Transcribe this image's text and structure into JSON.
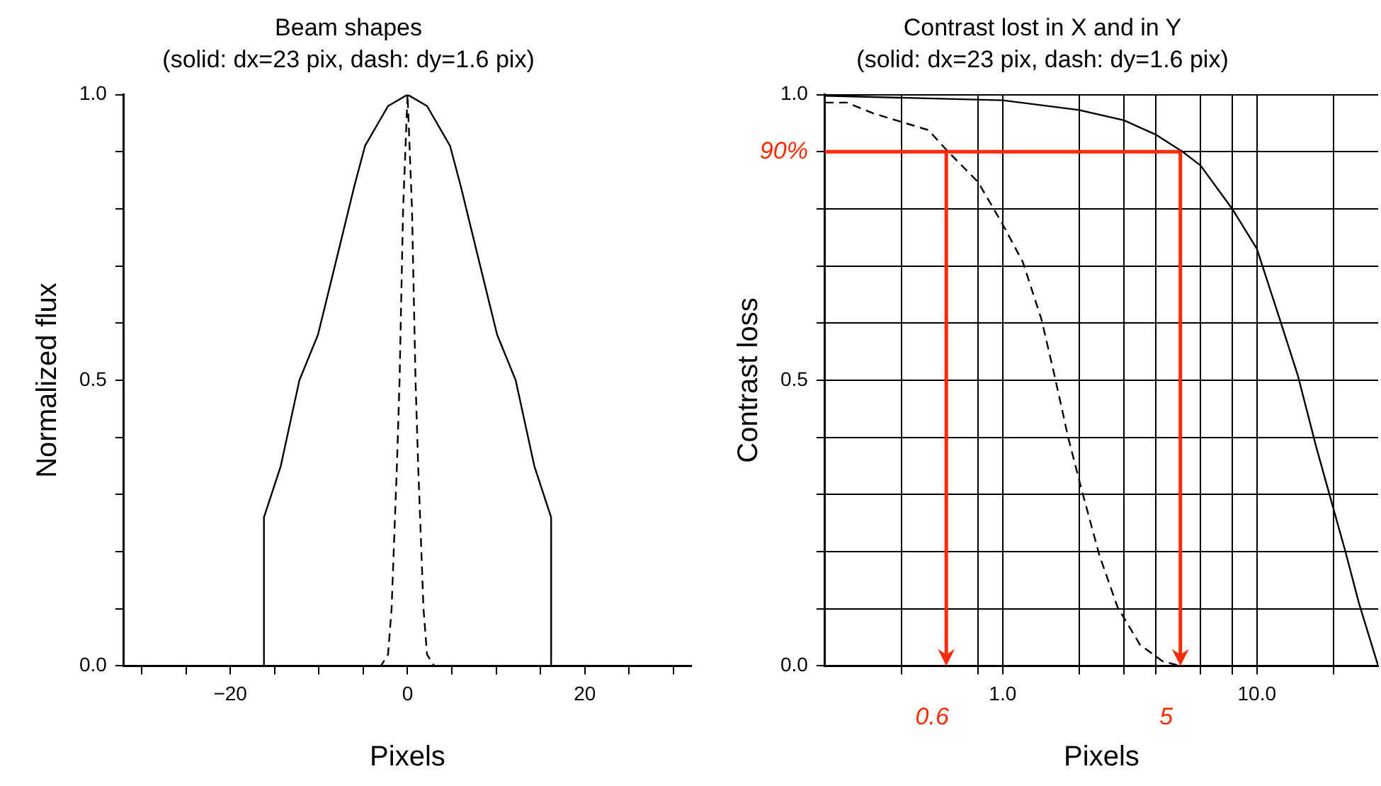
{
  "chart_data": [
    {
      "type": "line",
      "title": "Beam shapes",
      "subtitle": "(solid: dx=23 pix, dash: dy=1.6 pix)",
      "xlabel": "Pixels",
      "ylabel": "Normalized flux",
      "xlim": [
        -32,
        32
      ],
      "ylim": [
        0,
        1
      ],
      "xticks": [
        {
          "value": -30,
          "label": null
        },
        {
          "value": -25,
          "label": null
        },
        -20,
        {
          "value": -15,
          "label": null
        },
        {
          "value": -10,
          "label": null
        },
        {
          "value": -5,
          "label": null
        },
        0,
        {
          "value": 5,
          "label": null
        },
        {
          "value": 10,
          "label": null
        },
        {
          "value": 15,
          "label": null
        },
        20,
        {
          "value": 25,
          "label": null
        },
        {
          "value": 30,
          "label": null
        }
      ],
      "yticks": [
        {
          "value": 0,
          "label": "0.0"
        },
        {
          "value": 0.1,
          "label": null
        },
        {
          "value": 0.2,
          "label": null
        },
        {
          "value": 0.3,
          "label": null
        },
        {
          "value": 0.4,
          "label": null
        },
        {
          "value": 0.5,
          "label": "0.5"
        },
        {
          "value": 0.6,
          "label": null
        },
        {
          "value": 0.7,
          "label": null
        },
        {
          "value": 0.8,
          "label": null
        },
        {
          "value": 0.9,
          "label": null
        },
        {
          "value": 1,
          "label": "1.0"
        }
      ],
      "grid": false,
      "legend": false,
      "marker": "none",
      "series": [
        {
          "color": "#000000",
          "line_style": "solid",
          "x": [
            -32,
            -16.2,
            -16.2,
            -14.3,
            -12.2,
            -10.1,
            -8.2,
            -6,
            -4.8,
            -2.2,
            0,
            2.2,
            4.8,
            6,
            8.2,
            10.1,
            12.2,
            14.3,
            16.2,
            16.2,
            32
          ],
          "values": [
            0,
            0,
            0.26,
            0.35,
            0.5,
            0.58,
            0.7,
            0.84,
            0.91,
            0.98,
            1,
            0.98,
            0.91,
            0.84,
            0.7,
            0.58,
            0.5,
            0.35,
            0.26,
            0,
            0
          ]
        },
        {
          "color": "#000000",
          "line_style": "dashed",
          "x": [
            -32,
            -3,
            -2.2,
            -1.8,
            -1.2,
            -0.9,
            -0.5,
            0,
            0.5,
            0.9,
            1.2,
            1.8,
            2.2,
            3,
            32
          ],
          "values": [
            0,
            0,
            0.02,
            0.1,
            0.35,
            0.5,
            0.8,
            1,
            0.8,
            0.5,
            0.35,
            0.1,
            0.02,
            0,
            0
          ]
        }
      ]
    },
    {
      "type": "line",
      "title": "Contrast lost in X and in Y",
      "subtitle": "(solid: dx=23 pix, dash: dy=1.6 pix)",
      "xlabel": "Pixels",
      "ylabel": "Contrast loss",
      "xlim": [
        0.2,
        30
      ],
      "ylim": [
        0,
        1
      ],
      "log": "x",
      "xticks": [
        {
          "value": 0.4,
          "label": null
        },
        {
          "value": 0.8,
          "label": null
        },
        {
          "value": 1,
          "label": "1.0"
        },
        {
          "value": 2,
          "label": null
        },
        {
          "value": 3,
          "label": null
        },
        {
          "value": 4,
          "label": null
        },
        {
          "value": 6,
          "label": null
        },
        {
          "value": 8,
          "label": null
        },
        {
          "value": 10,
          "label": "10.0"
        },
        {
          "value": 20,
          "label": null
        }
      ],
      "yticks": [
        {
          "value": 0,
          "label": "0.0"
        },
        {
          "value": 0.1,
          "label": null
        },
        {
          "value": 0.2,
          "label": null
        },
        {
          "value": 0.3,
          "label": null
        },
        {
          "value": 0.4,
          "label": null
        },
        {
          "value": 0.5,
          "label": "0.5"
        },
        {
          "value": 0.6,
          "label": null
        },
        {
          "value": 0.7,
          "label": null
        },
        {
          "value": 0.8,
          "label": null
        },
        {
          "value": 0.9,
          "label": null
        },
        {
          "value": 1,
          "label": "1.0"
        }
      ],
      "grid": true,
      "legend": false,
      "marker": "none",
      "ref_lines": [
        {
          "axis": "y",
          "value": 0.9,
          "label": "90%",
          "color": "#ff2a00"
        },
        {
          "axis": "x",
          "value": 0.6,
          "label": "0.6",
          "color": "#ff2a00"
        },
        {
          "axis": "x",
          "value": 5,
          "label": "5",
          "color": "#ff2a00"
        }
      ],
      "series": [
        {
          "color": "#000000",
          "line_style": "solid",
          "x": [
            0.2,
            1,
            2,
            3,
            4,
            5.1,
            6,
            8,
            10,
            12.3,
            14.5,
            17.1,
            19.3,
            22.3,
            25.2,
            30
          ],
          "values": [
            0.998,
            0.99,
            0.973,
            0.955,
            0.93,
            0.9,
            0.876,
            0.8,
            0.73,
            0.607,
            0.508,
            0.384,
            0.3,
            0.2,
            0.11,
            0
          ]
        },
        {
          "color": "#000000",
          "line_style": "dashed",
          "x": [
            0.2,
            0.244,
            0.31,
            0.51,
            0.61,
            0.8,
            1,
            1.2,
            1.42,
            1.6,
            1.81,
            2.04,
            2.4,
            2.83,
            3.47,
            4.26,
            5,
            30
          ],
          "values": [
            0.986,
            0.986,
            0.967,
            0.938,
            0.9,
            0.847,
            0.773,
            0.707,
            0.607,
            0.508,
            0.4,
            0.31,
            0.194,
            0.103,
            0.037,
            0.008,
            0,
            0
          ]
        }
      ]
    }
  ]
}
